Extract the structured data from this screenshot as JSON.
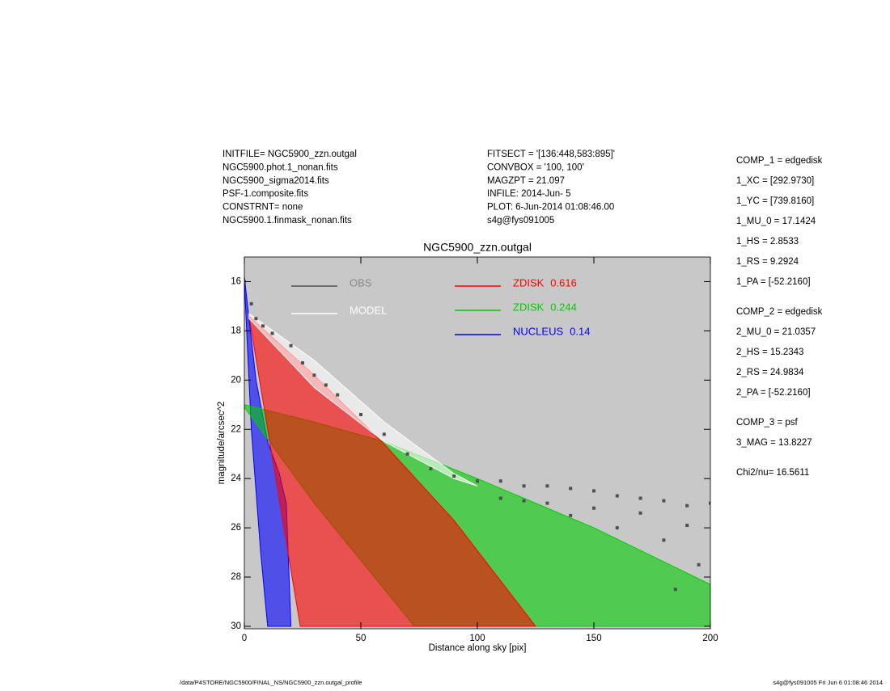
{
  "header_left": [
    "INITFILE= NGC5900_zzn.outgal",
    "NGC5900.phot.1_nonan.fits",
    "NGC5900_sigma2014.fits",
    "PSF-1.composite.fits",
    "CONSTRNT= none",
    "NGC5900.1.finmask_nonan.fits"
  ],
  "header_middle": [
    "FITSECT = '[136:448,583:895]'",
    "CONVBOX = '100, 100'",
    "MAGZPT =             21.097",
    "INFILE: 2014-Jun- 5",
    "PLOT:  6-Jun-2014 01:08:46.00",
    "s4g@fys091005"
  ],
  "parameters": [
    [
      "COMP_1  = edgedisk",
      "1_XC    = [292.9730]",
      "1_YC    = [739.8160]",
      "1_MU_0  = 17.1424",
      "1_HS    = 2.8533",
      "1_RS    = 9.2924",
      "1_PA    = [-52.2160]"
    ],
    [
      "COMP_2  = edgedisk",
      "2_MU_0  = 21.0357",
      "2_HS    = 15.2343",
      "2_RS    = 24.9834",
      "2_PA    = [-52.2160]"
    ],
    [
      "COMP_3  = psf",
      "3_MAG   = 13.8227"
    ],
    [
      "Chi2/nu=      16.5611"
    ]
  ],
  "footer_left": "/data/P4STORE/NGC5900/FINAL_NS/NGC5900_zzn.outgal_profile",
  "footer_right": "s4g@fys091005  Fri Jun  6 01:08:46 2014",
  "chart_data": {
    "type": "scatter",
    "title": "NGC5900_zzn.outgal",
    "x_label": "Distance along sky [pix]",
    "y_label": "magnitude/arcsec^2",
    "xlim": [
      0,
      200
    ],
    "ylim": [
      30.1,
      15
    ],
    "xticks": [
      0,
      50,
      100,
      150,
      200
    ],
    "yticks": [
      16,
      18,
      20,
      22,
      24,
      26,
      28,
      30
    ],
    "background": "#c8c8c8",
    "series": [
      {
        "name": "OBS",
        "color": "#505050",
        "marker": "point",
        "x": [
          0,
          3,
          5,
          8,
          12,
          20,
          25,
          30,
          35,
          40,
          50,
          60,
          70,
          80,
          90,
          100,
          110,
          120,
          130,
          140,
          150,
          160,
          170,
          180,
          190,
          200,
          110,
          130,
          150,
          170,
          190,
          180,
          160,
          140,
          120,
          195,
          185
        ],
        "y": [
          16,
          16.9,
          17.5,
          17.8,
          18.1,
          18.6,
          19.3,
          19.8,
          20.2,
          20.6,
          21.4,
          22.2,
          23,
          23.6,
          23.9,
          24.1,
          24.1,
          24.3,
          24.3,
          24.4,
          24.5,
          24.7,
          24.8,
          24.9,
          25.1,
          25,
          24.8,
          25,
          25.2,
          25.4,
          25.9,
          26.5,
          26,
          25.5,
          24.9,
          27.5,
          28.5
        ]
      },
      {
        "name": "MODEL",
        "color": "#ffffff",
        "marker": "area",
        "x": [
          2,
          30,
          60,
          90,
          100,
          90,
          60,
          30,
          2
        ],
        "y": [
          17.3,
          19.2,
          21.7,
          23.8,
          24.3,
          24,
          22.5,
          20.3,
          17.5
        ]
      },
      {
        "name": "ZDISK",
        "fraction": 0.616,
        "color": "#ff0000",
        "marker": "area",
        "x": [
          2,
          30,
          60,
          90,
          125,
          24,
          10,
          2
        ],
        "y": [
          17.4,
          19.8,
          22.6,
          25.7,
          30,
          30,
          22,
          17.4
        ]
      },
      {
        "name": "ZDISK",
        "fraction": 0.244,
        "color": "#00cc00",
        "marker": "area",
        "x": [
          0,
          30,
          60,
          100,
          150,
          200,
          200,
          73,
          30,
          0
        ],
        "y": [
          21,
          21.7,
          22.5,
          24,
          26,
          28.3,
          30,
          30,
          25,
          21.1
        ]
      },
      {
        "name": "NUCLEUS",
        "fraction": 0.14,
        "color": "#0000ff",
        "marker": "area",
        "x": [
          0,
          5,
          10,
          15,
          18,
          20,
          10,
          7,
          3,
          0
        ],
        "y": [
          15.8,
          20,
          22.5,
          23.8,
          25,
          30,
          30,
          27,
          22,
          16
        ]
      }
    ]
  }
}
